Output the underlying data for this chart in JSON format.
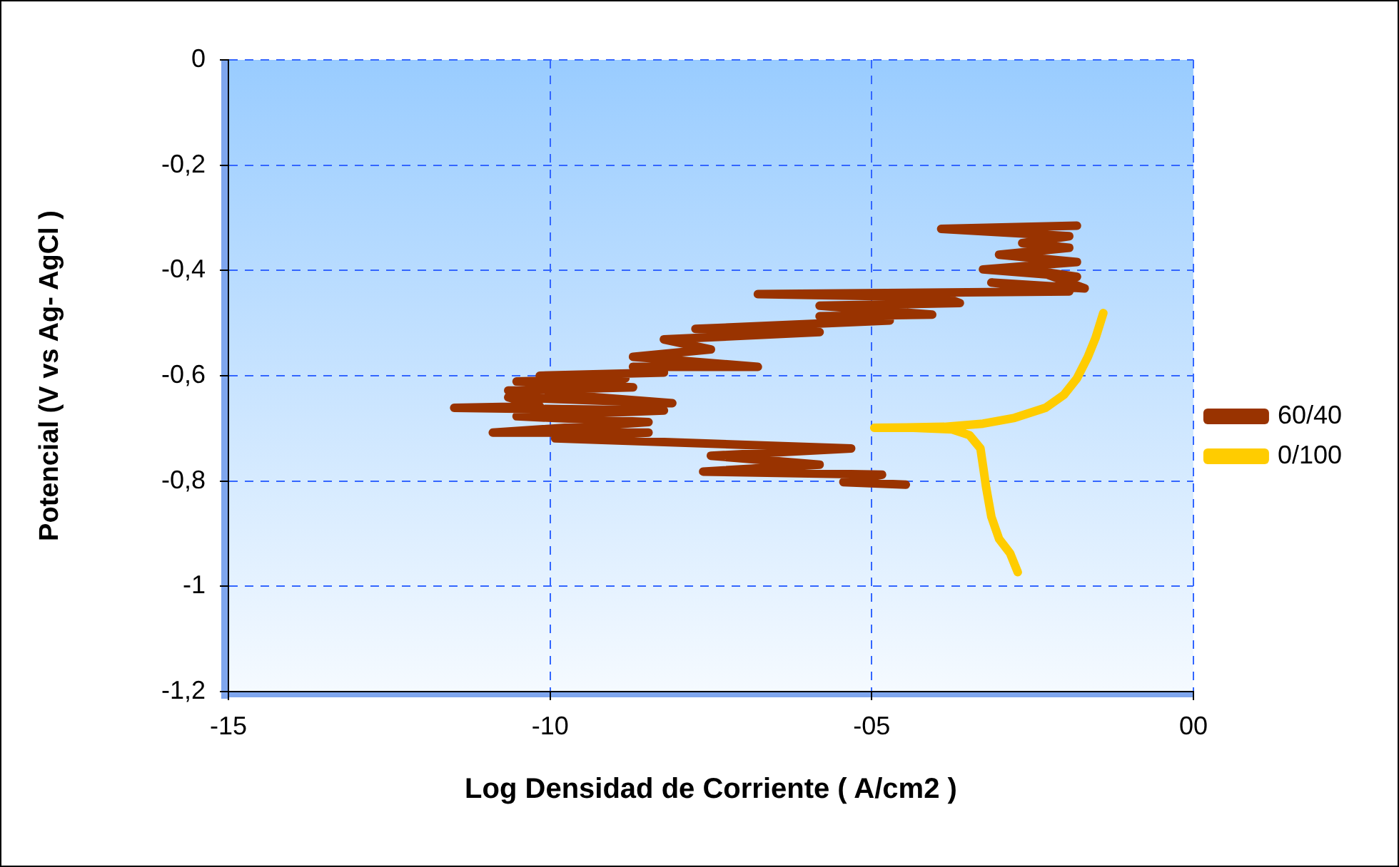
{
  "chart_data": {
    "type": "line",
    "xlabel": "Log Densidad de Corriente ( A/cm2 )",
    "ylabel": "Potencial (V vs Ag- AgCl )",
    "xlim": [
      -15,
      0
    ],
    "xticks": [
      -15,
      -10,
      {
        "value": -5,
        "label": "-05"
      },
      {
        "value": 0,
        "label": "00"
      }
    ],
    "ylim": [
      -1.2,
      0
    ],
    "yticks": [
      {
        "value": -1.2,
        "label": "-1,2"
      },
      -1,
      {
        "value": -0.8,
        "label": "-0,8"
      },
      {
        "value": -0.6,
        "label": "-0,6"
      },
      {
        "value": -0.4,
        "label": "-0,4"
      },
      {
        "value": -0.2,
        "label": "-0,2"
      },
      0
    ],
    "grid": true,
    "legend": "right",
    "marker": "none",
    "line_style": "solid",
    "series": [
      {
        "name": "60/40",
        "color": "#993300",
        "x": [
          -4.47,
          -5.44,
          -4.84,
          -7.62,
          -5.81,
          -7.5,
          -5.32,
          -9.92,
          -8.47,
          -10.89,
          -8.47,
          -10.52,
          -8.23,
          -11.49,
          -10.16,
          -10.65,
          -8.1,
          -10.65,
          -8.71,
          -10.52,
          -8.83,
          -10.16,
          -8.23,
          -8.71,
          -6.77,
          -8.71,
          -7.5,
          -8.23,
          -5.81,
          -7.74,
          -4.72,
          -5.81,
          -4.06,
          -5.81,
          -3.63,
          -3.87,
          -6.77,
          -1.93,
          -3.14,
          -1.69,
          -2.42,
          -1.81,
          -3.27,
          -1.81,
          -3.02,
          -1.93,
          -2.66,
          -1.93,
          -3.92,
          -1.81
        ],
        "values": [
          -0.807,
          -0.802,
          -0.788,
          -0.782,
          -0.769,
          -0.752,
          -0.738,
          -0.719,
          -0.708,
          -0.708,
          -0.688,
          -0.677,
          -0.666,
          -0.661,
          -0.658,
          -0.641,
          -0.652,
          -0.628,
          -0.622,
          -0.611,
          -0.605,
          -0.6,
          -0.594,
          -0.583,
          -0.583,
          -0.564,
          -0.55,
          -0.531,
          -0.517,
          -0.511,
          -0.495,
          -0.487,
          -0.484,
          -0.467,
          -0.462,
          -0.451,
          -0.445,
          -0.44,
          -0.423,
          -0.434,
          -0.401,
          -0.412,
          -0.398,
          -0.384,
          -0.37,
          -0.357,
          -0.348,
          -0.335,
          -0.321,
          -0.315
        ]
      },
      {
        "name": "0/100",
        "color": "#ffcc00",
        "x": [
          -2.73,
          -2.85,
          -3.02,
          -3.14,
          -3.22,
          -3.27,
          -3.31,
          -3.48,
          -3.75,
          -4.35,
          -4.96,
          -3.87,
          -3.27,
          -2.78,
          -2.3,
          -2.01,
          -1.81,
          -1.64,
          -1.52,
          -1.4
        ],
        "values": [
          -0.973,
          -0.937,
          -0.91,
          -0.868,
          -0.813,
          -0.771,
          -0.738,
          -0.713,
          -0.702,
          -0.699,
          -0.699,
          -0.697,
          -0.691,
          -0.68,
          -0.661,
          -0.636,
          -0.605,
          -0.564,
          -0.528,
          -0.481
        ]
      }
    ]
  }
}
